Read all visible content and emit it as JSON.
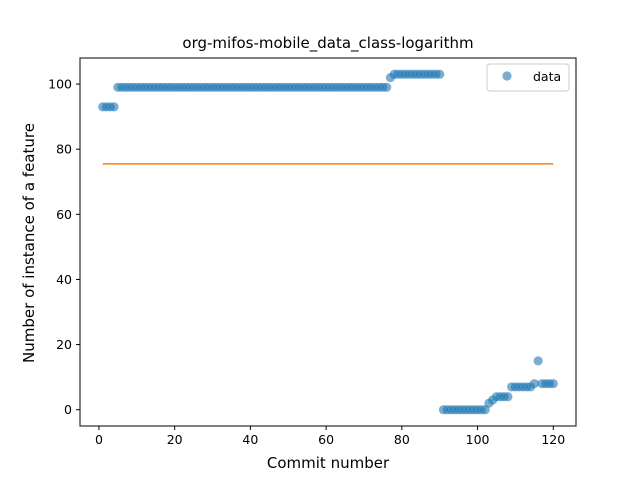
{
  "chart_data": {
    "type": "scatter",
    "title": "org-mifos-mobile_data_class-logarithm",
    "xlabel": "Commit number",
    "ylabel": "Number of instance of a feature",
    "xlim": [
      -5,
      126
    ],
    "ylim": [
      -5,
      108
    ],
    "xticks": [
      0,
      20,
      40,
      60,
      80,
      100,
      120
    ],
    "yticks": [
      0,
      20,
      40,
      60,
      80,
      100
    ],
    "grid": false,
    "legend": {
      "placement": "top-right",
      "entries": [
        "data"
      ]
    },
    "colors": {
      "data": "#1f77b4",
      "fit": "#ff7f0e"
    },
    "series": [
      {
        "name": "data",
        "kind": "scatter",
        "x": [
          1,
          2,
          3,
          4,
          5,
          6,
          7,
          8,
          9,
          10,
          11,
          12,
          13,
          14,
          15,
          16,
          17,
          18,
          19,
          20,
          21,
          22,
          23,
          24,
          25,
          26,
          27,
          28,
          29,
          30,
          31,
          32,
          33,
          34,
          35,
          36,
          37,
          38,
          39,
          40,
          41,
          42,
          43,
          44,
          45,
          46,
          47,
          48,
          49,
          50,
          51,
          52,
          53,
          54,
          55,
          56,
          57,
          58,
          59,
          60,
          61,
          62,
          63,
          64,
          65,
          66,
          67,
          68,
          69,
          70,
          71,
          72,
          73,
          74,
          75,
          76,
          77,
          78,
          79,
          80,
          81,
          82,
          83,
          84,
          85,
          86,
          87,
          88,
          89,
          90,
          91,
          92,
          93,
          94,
          95,
          96,
          97,
          98,
          99,
          100,
          101,
          102,
          103,
          104,
          105,
          106,
          107,
          108,
          109,
          110,
          111,
          112,
          113,
          114,
          115,
          116,
          117,
          118,
          119,
          120
        ],
        "y": [
          93,
          93,
          93,
          93,
          99,
          99,
          99,
          99,
          99,
          99,
          99,
          99,
          99,
          99,
          99,
          99,
          99,
          99,
          99,
          99,
          99,
          99,
          99,
          99,
          99,
          99,
          99,
          99,
          99,
          99,
          99,
          99,
          99,
          99,
          99,
          99,
          99,
          99,
          99,
          99,
          99,
          99,
          99,
          99,
          99,
          99,
          99,
          99,
          99,
          99,
          99,
          99,
          99,
          99,
          99,
          99,
          99,
          99,
          99,
          99,
          99,
          99,
          99,
          99,
          99,
          99,
          99,
          99,
          99,
          99,
          99,
          99,
          99,
          99,
          99,
          99,
          102,
          103,
          103,
          103,
          103,
          103,
          103,
          103,
          103,
          103,
          103,
          103,
          103,
          103,
          0,
          0,
          0,
          0,
          0,
          0,
          0,
          0,
          0,
          0,
          0,
          0,
          2,
          3,
          4,
          4,
          4,
          4,
          7,
          7,
          7,
          7,
          7,
          7,
          8,
          15,
          8,
          8,
          8,
          8
        ]
      },
      {
        "kind": "line",
        "x": [
          1,
          120
        ],
        "y": [
          75.5,
          75.5
        ]
      }
    ]
  }
}
